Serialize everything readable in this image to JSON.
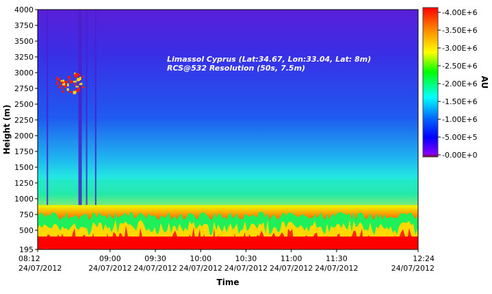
{
  "chart_data": {
    "type": "heatmap",
    "title": "",
    "annotations": [
      "Limassol Cyprus (Lat:34.67, Lon:33.04, Lat: 8m)",
      "RCS@532 Resolution (50s, 7.5m)"
    ],
    "xlabel": "Time",
    "ylabel": "Height (m)",
    "ylim": [
      195,
      4000
    ],
    "xlim": [
      "08:12",
      "12:24"
    ],
    "x_ticks": [
      {
        "time": "08:12",
        "date": "24/07/2012"
      },
      {
        "time": "09:00",
        "date": "24/07/2012"
      },
      {
        "time": "09:30",
        "date": "24/07/2012"
      },
      {
        "time": "10:00",
        "date": "24/07/2012"
      },
      {
        "time": "10:30",
        "date": "24/07/2012"
      },
      {
        "time": "11:00",
        "date": "24/07/2012"
      },
      {
        "time": "11:30",
        "date": "24/07/2012"
      },
      {
        "time": "12:24",
        "date": "24/07/2012"
      }
    ],
    "y_ticks": [
      "195",
      "500",
      "750",
      "1000",
      "1250",
      "1500",
      "1750",
      "2000",
      "2250",
      "2500",
      "2750",
      "3000",
      "3250",
      "3500",
      "3750",
      "4000"
    ],
    "y_tick_values": [
      195,
      500,
      750,
      1000,
      1250,
      1500,
      1750,
      2000,
      2250,
      2500,
      2750,
      3000,
      3250,
      3500,
      3750,
      4000
    ],
    "colorbar": {
      "label": "AU",
      "range": [
        0,
        4000000
      ],
      "tick_labels": [
        "4.00E+6",
        "3.50E+6",
        "3.00E+6",
        "2.50E+6",
        "2.00E+6",
        "1.50E+6",
        "1.00E+6",
        "5.00E+5",
        "0.00E+0"
      ],
      "tick_values": [
        4000000,
        3500000,
        3000000,
        2500000,
        2000000,
        1500000,
        1000000,
        500000,
        0
      ],
      "colors": [
        "#ff0000",
        "#ff8000",
        "#ffff00",
        "#00ff00",
        "#00ffff",
        "#0080ff",
        "#0000ff",
        "#8000ff"
      ]
    },
    "grid": false,
    "features": {
      "boundary_layer_top_m": 900,
      "aerosol_layer_top_m": 1250,
      "cloud_height_m": [
        2700,
        3000
      ],
      "cloud_time": [
        "08:24",
        "08:42"
      ]
    }
  }
}
